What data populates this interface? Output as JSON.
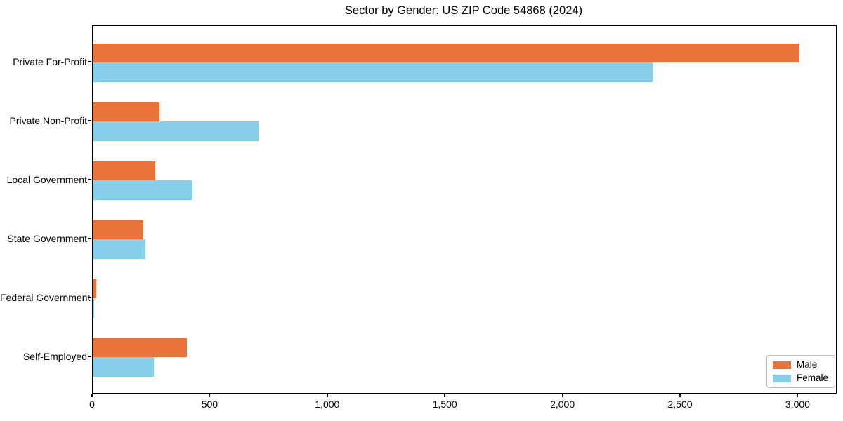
{
  "title": "Sector by Gender: US ZIP Code 54868 (2024)",
  "colors": {
    "male": "#e8743b",
    "female": "#87ceeb",
    "spine": "#000000",
    "legend_border": "#b9b9b9"
  },
  "legend": {
    "position": "lower right",
    "items": [
      {
        "label": "Male",
        "color": "#e8743b"
      },
      {
        "label": "Female",
        "color": "#87ceeb"
      }
    ]
  },
  "chart_data": {
    "type": "bar",
    "orientation": "horizontal",
    "title": "Sector by Gender: US ZIP Code 54868 (2024)",
    "categories": [
      "Private For-Profit",
      "Private Non-Profit",
      "Local Government",
      "State Government",
      "Federal Government",
      "Self-Employed"
    ],
    "series": [
      {
        "name": "Male",
        "color": "#e8743b",
        "values": [
          3005,
          285,
          265,
          215,
          15,
          400
        ]
      },
      {
        "name": "Female",
        "color": "#87ceeb",
        "values": [
          2380,
          705,
          425,
          225,
          6,
          260
        ]
      }
    ],
    "xlabel": "",
    "ylabel": "",
    "xlim": [
      0,
      3160
    ],
    "xticks": [
      0,
      500,
      1000,
      1500,
      2000,
      2500,
      3000
    ],
    "xtick_labels": [
      "0",
      "500",
      "1,000",
      "1,500",
      "2,000",
      "2,500",
      "3,000"
    ],
    "grid": false,
    "legend_position": "lower right"
  }
}
